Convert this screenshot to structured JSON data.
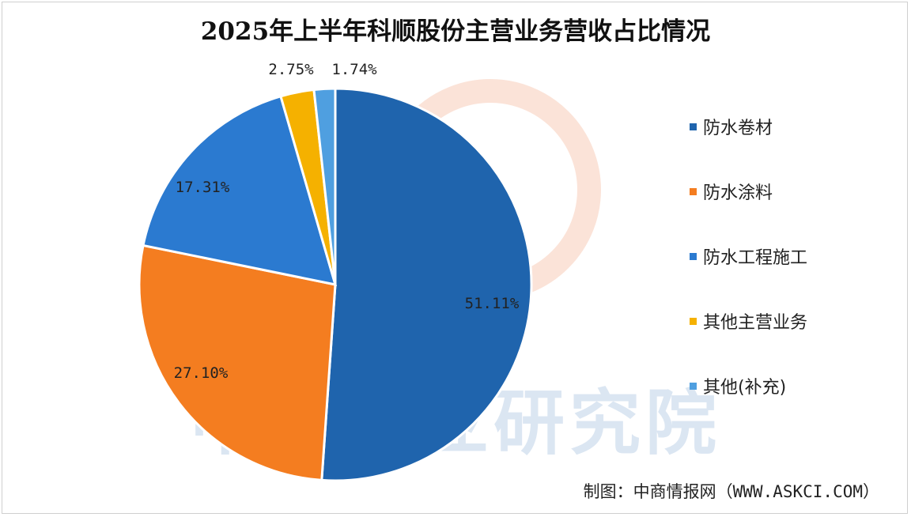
{
  "chart_data": {
    "type": "pie",
    "title": "2025年上半年科顺股份主营业务营收占比情况",
    "slices": [
      {
        "name": "防水卷材",
        "value": 51.11,
        "label": "51.11%",
        "color": "#1f64ad"
      },
      {
        "name": "防水涂料",
        "value": 27.1,
        "label": "27.10%",
        "color": "#f47d20"
      },
      {
        "name": "防水工程施工",
        "value": 17.31,
        "label": "17.31%",
        "color": "#2b7ad0"
      },
      {
        "name": "其他主营业务",
        "value": 2.75,
        "label": "2.75%",
        "color": "#f5b100"
      },
      {
        "name": "其他(补充)",
        "value": 1.74,
        "label": "1.74%",
        "color": "#4f9fe0"
      }
    ],
    "legend_position": "right"
  },
  "source": "制图：中商情报网（WWW.ASKCI.COM）",
  "watermark": "中商产业研究院"
}
